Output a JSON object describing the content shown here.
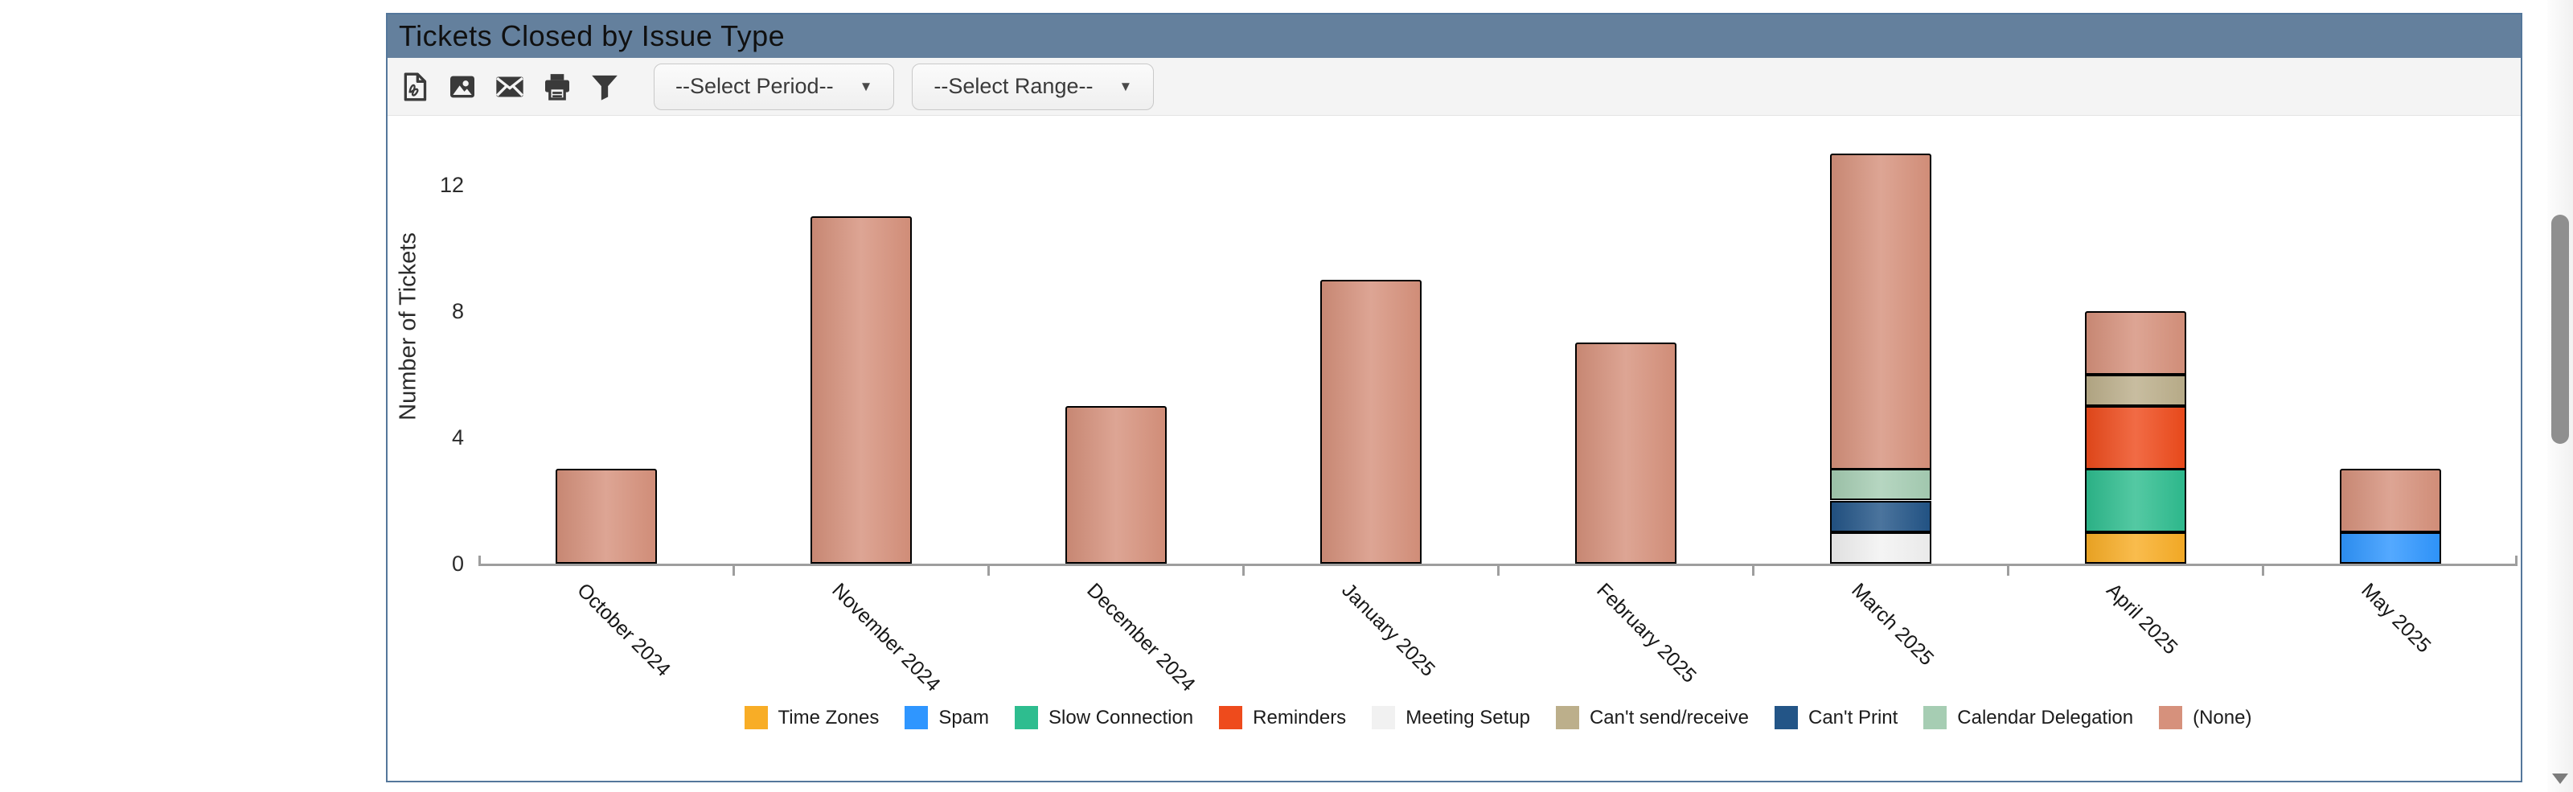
{
  "colors": {
    "header_bg": "#64809D",
    "panel_border": "#54779B",
    "toolbar_bg": "#F4F4F4",
    "axis": "#9E9E9E",
    "scroll_thumb": "#8F8F8F",
    "icon": "#3A3A3A"
  },
  "panel": {
    "title": "Tickets Closed by Issue Type",
    "toolbar": {
      "icons": [
        {
          "name": "export-pdf-icon"
        },
        {
          "name": "export-image-icon"
        },
        {
          "name": "email-icon"
        },
        {
          "name": "print-icon"
        },
        {
          "name": "filter-icon"
        }
      ],
      "period_dropdown": {
        "value": "--Select Period--",
        "caret": "▼"
      },
      "range_dropdown": {
        "value": "--Select Range--",
        "caret": "▼"
      }
    }
  },
  "chart_data": {
    "type": "bar",
    "stacked": true,
    "title": "Tickets Closed by Issue Type",
    "xlabel": "",
    "ylabel": "Number of Tickets",
    "yticks": [
      0,
      4,
      8,
      12
    ],
    "ylim": [
      0,
      14
    ],
    "grid": false,
    "legend_position": "bottom",
    "categories": [
      "October 2024",
      "November 2024",
      "December 2024",
      "January 2025",
      "February 2025",
      "March 2025",
      "April 2025",
      "May 2025"
    ],
    "series": [
      {
        "name": "Time Zones",
        "color": "#F8AD26",
        "values": [
          0,
          0,
          0,
          0,
          0,
          0,
          1,
          0
        ]
      },
      {
        "name": "Spam",
        "color": "#2F96FF",
        "values": [
          0,
          0,
          0,
          0,
          0,
          0,
          0,
          1
        ]
      },
      {
        "name": "Slow Connection",
        "color": "#2EBD8F",
        "values": [
          0,
          0,
          0,
          0,
          0,
          0,
          2,
          0
        ]
      },
      {
        "name": "Reminders",
        "color": "#EE4B1C",
        "values": [
          0,
          0,
          0,
          0,
          0,
          0,
          2,
          0
        ]
      },
      {
        "name": "Meeting Setup",
        "color": "#F1F1F1",
        "values": [
          0,
          0,
          0,
          0,
          0,
          1,
          0,
          0
        ]
      },
      {
        "name": "Can't send/receive",
        "color": "#BCAF8B",
        "values": [
          0,
          0,
          0,
          0,
          0,
          0,
          1,
          0
        ]
      },
      {
        "name": "Can't Print",
        "color": "#235587",
        "values": [
          0,
          0,
          0,
          0,
          0,
          1,
          0,
          0
        ]
      },
      {
        "name": "Calendar Delegation",
        "color": "#A6CDB3",
        "values": [
          0,
          0,
          0,
          0,
          0,
          1,
          0,
          0
        ]
      },
      {
        "name": "(None)",
        "color": "#D6917C",
        "values": [
          3,
          11,
          5,
          9,
          7,
          10,
          2,
          2
        ]
      }
    ],
    "totals": [
      3,
      11,
      5,
      9,
      7,
      13,
      8,
      3
    ]
  }
}
